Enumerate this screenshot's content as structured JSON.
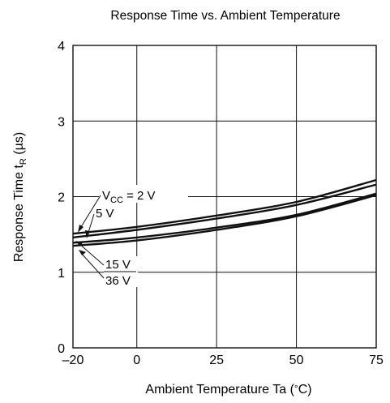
{
  "chart_data": {
    "type": "line",
    "title": "Response Time vs. Ambient Temperature",
    "xlabel_prefix": "Ambient Temperature  Ta  (",
    "xlabel_unit_symbol": "°",
    "xlabel_unit": "C)",
    "ylabel_prefix": "Response Time  t",
    "ylabel_sub": "R",
    "ylabel_unit": "  (µs)",
    "xlim": [
      -20,
      75
    ],
    "ylim": [
      0,
      4
    ],
    "x_ticks": [
      -20,
      0,
      25,
      50,
      75
    ],
    "x_tick_labels": [
      "–20",
      "0",
      "25",
      "50",
      "75"
    ],
    "y_ticks": [
      0,
      1,
      2,
      3,
      4
    ],
    "y_tick_labels": [
      "0",
      "1",
      "2",
      "3",
      "4"
    ],
    "grid": true,
    "series": [
      {
        "name": "VCC = 2 V",
        "x": [
          -20,
          0,
          25,
          50,
          75
        ],
        "y": [
          1.51,
          1.6,
          1.75,
          1.93,
          2.22
        ]
      },
      {
        "name": "5 V",
        "x": [
          -20,
          0,
          25,
          50,
          75
        ],
        "y": [
          1.46,
          1.56,
          1.71,
          1.89,
          2.16
        ]
      },
      {
        "name": "15 V",
        "x": [
          -20,
          0,
          25,
          50,
          75
        ],
        "y": [
          1.39,
          1.46,
          1.59,
          1.76,
          2.04
        ]
      },
      {
        "name": "36 V",
        "x": [
          -20,
          0,
          25,
          50,
          75
        ],
        "y": [
          1.35,
          1.42,
          1.56,
          1.74,
          2.02
        ]
      }
    ],
    "annotations": {
      "vcc_main": "V",
      "vcc_sub": "CC",
      "vcc_rest": " = 2 V",
      "v5": "5 V",
      "v15": "15 V",
      "v36": "36 V"
    }
  }
}
